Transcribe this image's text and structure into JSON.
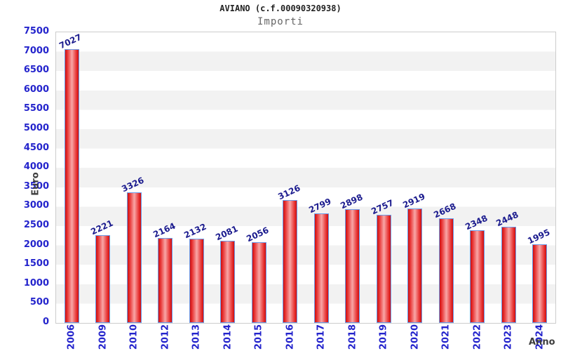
{
  "header": {
    "title": "AVIANO (c.f.00090320938)",
    "subtitle": "Importi"
  },
  "chart_data": {
    "type": "bar",
    "title": "AVIANO (c.f.00090320938)",
    "subtitle": "Importi",
    "categories": [
      "2006",
      "2009",
      "2010",
      "2012",
      "2013",
      "2014",
      "2015",
      "2016",
      "2017",
      "2018",
      "2019",
      "2020",
      "2021",
      "2022",
      "2023",
      "2024"
    ],
    "values": [
      7027,
      2221,
      3326,
      2164,
      2132,
      2081,
      2056,
      3126,
      2799,
      2898,
      2757,
      2919,
      2668,
      2348,
      2448,
      1995
    ],
    "xlabel": "Anno",
    "ylabel": "Euro",
    "ylim": [
      0,
      7500
    ],
    "ytick_step": 500,
    "legend": "none",
    "grid": "alternating horizontal bands every 500",
    "bar_value_labels_rotated": true,
    "colors": {
      "bar_fill_edge": "#cf0d0d",
      "bar_fill_center": "#f8a7a7",
      "bar_border": "#6b9be8",
      "tick_label": "#2424cc",
      "value_label": "#1b1b8e",
      "band_gray": "#f2f2f2",
      "band_white": "#ffffff",
      "plot_border": "#cccccc",
      "axis_caption": "#3d3d3d",
      "title_text": "#222222",
      "subtitle_text": "#666666"
    }
  }
}
